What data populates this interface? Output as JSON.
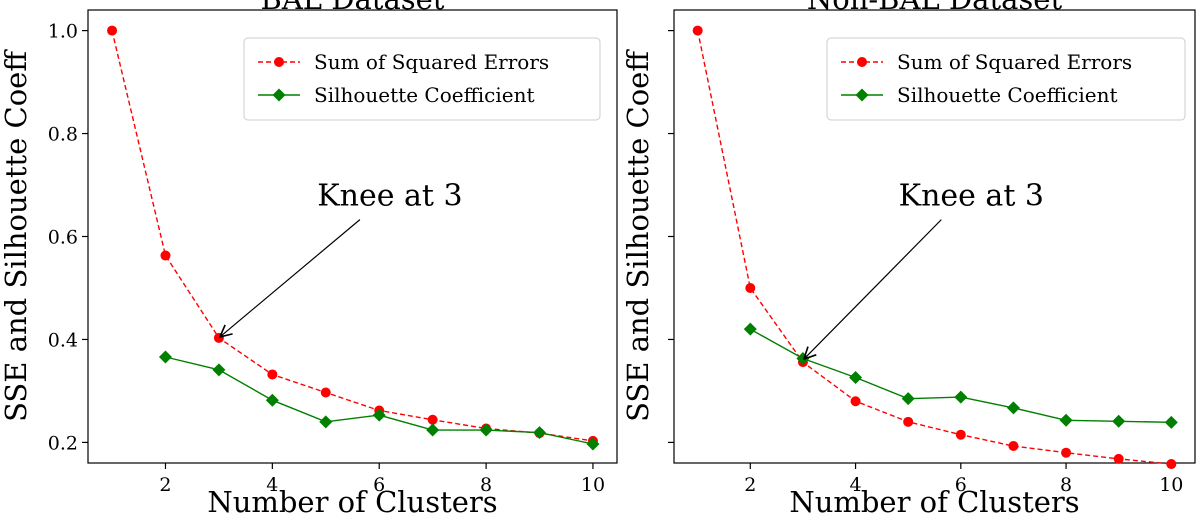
{
  "chart_data": [
    {
      "type": "line",
      "title": "BAL Dataset",
      "xlabel": "Number of Clusters",
      "ylabel": "SSE and Silhouette Coeff",
      "xticks": [
        2,
        4,
        6,
        8,
        10
      ],
      "yticks": [
        "0.2",
        "0.4",
        "0.6",
        "0.8",
        "1.0"
      ],
      "xlim": [
        0.55,
        10.45
      ],
      "ylim": [
        0.16,
        1.04
      ],
      "legend_position": "top-right",
      "grid": false,
      "series": [
        {
          "name": "Sum of Squared Errors",
          "color": "#ff0000",
          "style": "dashed",
          "marker": "circle",
          "x": [
            1,
            2,
            3,
            4,
            5,
            6,
            7,
            8,
            9,
            10
          ],
          "y": [
            1.0,
            0.563,
            0.403,
            0.332,
            0.297,
            0.262,
            0.244,
            0.227,
            0.218,
            0.203
          ]
        },
        {
          "name": "Silhouette Coefficient",
          "color": "#008000",
          "style": "solid",
          "marker": "diamond",
          "x": [
            2,
            3,
            4,
            5,
            6,
            7,
            8,
            9,
            10
          ],
          "y": [
            0.366,
            0.341,
            0.282,
            0.24,
            0.253,
            0.224,
            0.224,
            0.219,
            0.197
          ]
        }
      ],
      "annotation": {
        "text": "Knee at 3",
        "x": 3,
        "y": 0.403,
        "text_x": 6.2,
        "text_y": 0.66
      }
    },
    {
      "type": "line",
      "title": "Non-BAL Dataset",
      "xlabel": "Number of Clusters",
      "ylabel": "SSE and Silhouette Coeff",
      "xticks": [
        2,
        4,
        6,
        8,
        10
      ],
      "yticks": [
        "0.2",
        "0.4",
        "0.6",
        "0.8",
        "1.0"
      ],
      "xlim": [
        0.55,
        10.45
      ],
      "ylim": [
        0.16,
        1.04
      ],
      "legend_position": "top-right",
      "grid": false,
      "series": [
        {
          "name": "Sum of Squared Errors",
          "color": "#ff0000",
          "style": "dashed",
          "marker": "circle",
          "x": [
            1,
            2,
            3,
            4,
            5,
            6,
            7,
            8,
            9,
            10
          ],
          "y": [
            1.0,
            0.5,
            0.356,
            0.28,
            0.24,
            0.215,
            0.193,
            0.18,
            0.168,
            0.158
          ]
        },
        {
          "name": "Silhouette Coefficient",
          "color": "#008000",
          "style": "solid",
          "marker": "diamond",
          "x": [
            2,
            3,
            4,
            5,
            6,
            7,
            8,
            9,
            10
          ],
          "y": [
            0.42,
            0.363,
            0.326,
            0.285,
            0.288,
            0.267,
            0.243,
            0.241,
            0.239
          ]
        }
      ],
      "annotation": {
        "text": "Knee at 3",
        "x": 3,
        "y": 0.36,
        "text_x": 6.2,
        "text_y": 0.66
      }
    }
  ]
}
